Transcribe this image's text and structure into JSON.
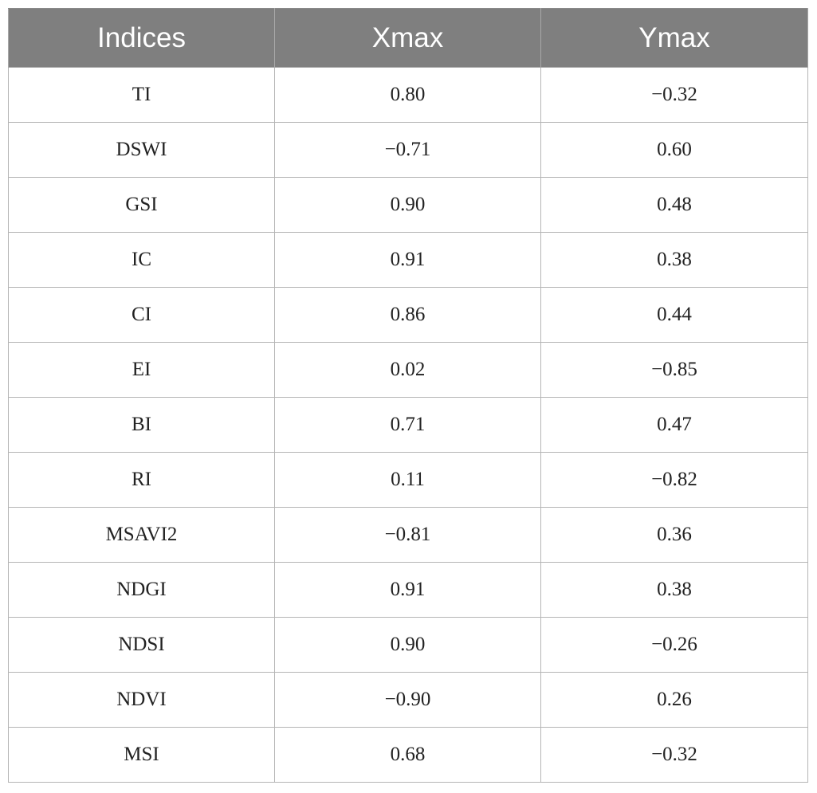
{
  "table": {
    "headers": [
      "Indices",
      "Xmax",
      "Ymax"
    ],
    "rows": [
      [
        "TI",
        "0.80",
        "−0.32"
      ],
      [
        "DSWI",
        "−0.71",
        "0.60"
      ],
      [
        "GSI",
        "0.90",
        "0.48"
      ],
      [
        "IC",
        "0.91",
        "0.38"
      ],
      [
        "CI",
        "0.86",
        "0.44"
      ],
      [
        "EI",
        "0.02",
        "−0.85"
      ],
      [
        "BI",
        "0.71",
        "0.47"
      ],
      [
        "RI",
        "0.11",
        "−0.82"
      ],
      [
        "MSAVI2",
        "−0.81",
        "0.36"
      ],
      [
        "NDGI",
        "0.91",
        "0.38"
      ],
      [
        "NDSI",
        "0.90",
        "−0.26"
      ],
      [
        "NDVI",
        "−0.90",
        "0.26"
      ],
      [
        "MSI",
        "0.68",
        "−0.32"
      ]
    ]
  },
  "colors": {
    "header_background": "#7f7f7f",
    "header_text": "#ffffff",
    "cell_border": "#b5b5b5",
    "body_text": "#222222"
  }
}
